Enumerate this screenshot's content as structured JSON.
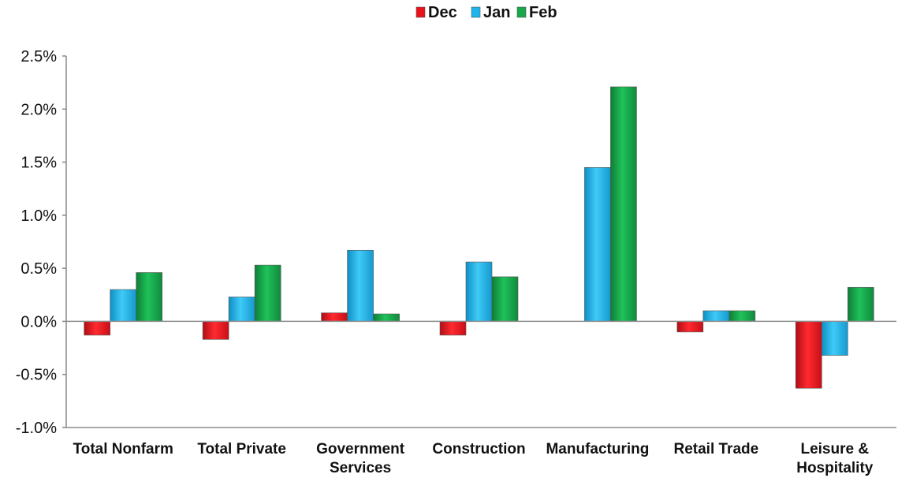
{
  "chart_data": {
    "type": "bar",
    "categories": [
      "Total Nonfarm",
      "Total Private",
      "Government\nServices",
      "Construction",
      "Manufacturing",
      "Retail Trade",
      "Leisure &\nHospitality"
    ],
    "series": [
      {
        "name": "Dec",
        "color": "#e8121b",
        "values": [
          -0.13,
          -0.17,
          0.08,
          -0.13,
          0.0,
          -0.1,
          -0.63
        ]
      },
      {
        "name": "Jan",
        "color": "#1cb4ea",
        "values": [
          0.3,
          0.23,
          0.67,
          0.56,
          1.45,
          0.1,
          -0.32
        ]
      },
      {
        "name": "Feb",
        "color": "#16a84a",
        "values": [
          0.46,
          0.53,
          0.07,
          0.42,
          2.21,
          0.1,
          0.32
        ]
      }
    ],
    "ylim": [
      -1.0,
      2.5
    ],
    "yticks": [
      -1.0,
      -0.5,
      0.0,
      0.5,
      1.0,
      1.5,
      2.0,
      2.5
    ],
    "ytick_labels": [
      "-1.0%",
      "-0.5%",
      "0.0%",
      "0.5%",
      "1.0%",
      "1.5%",
      "2.0%",
      "2.5%"
    ],
    "legend_position": "top-center",
    "grid": false
  }
}
